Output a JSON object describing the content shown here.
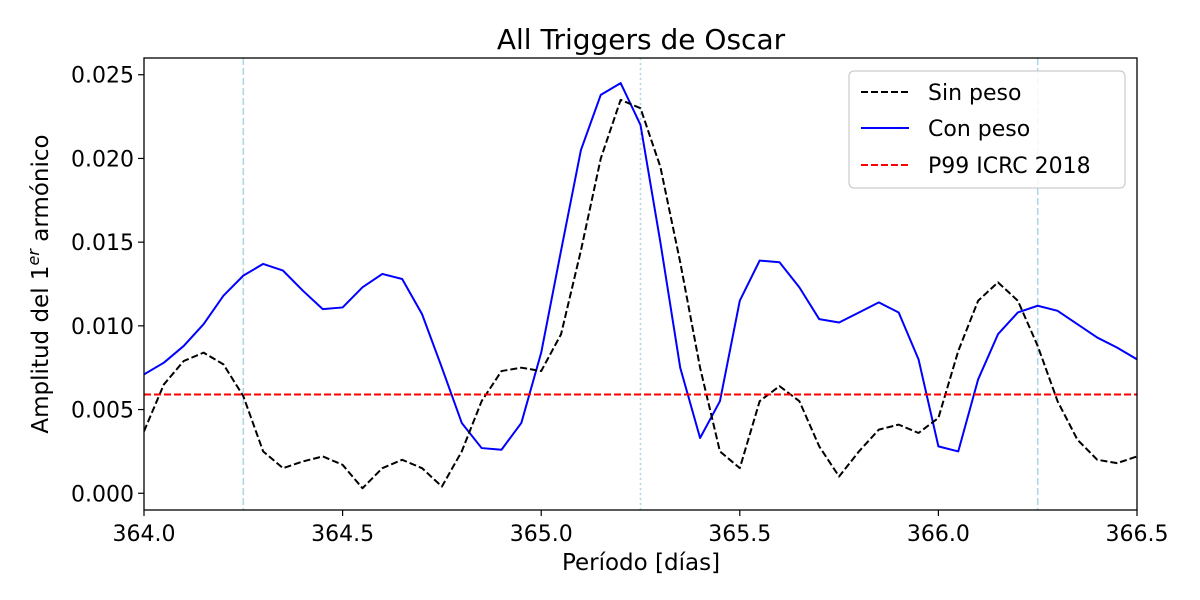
{
  "chart_data": {
    "type": "line",
    "title": "All Triggers de Oscar",
    "xlabel": "Período [días]",
    "ylabel_main": "Amplitud del 1",
    "ylabel_sup": "er",
    "ylabel_tail": " armónico",
    "xlim": [
      364.0,
      366.5
    ],
    "ylim": [
      -0.001,
      0.026
    ],
    "xticks": [
      364.0,
      364.5,
      365.0,
      365.5,
      366.0,
      366.5
    ],
    "xtick_labels": [
      "364.0",
      "364.5",
      "365.0",
      "365.5",
      "366.0",
      "366.5"
    ],
    "yticks": [
      0.0,
      0.005,
      0.01,
      0.015,
      0.02,
      0.025
    ],
    "ytick_labels": [
      "0.000",
      "0.005",
      "0.010",
      "0.015",
      "0.020",
      "0.025"
    ],
    "grid": false,
    "legend_position": "top-right",
    "series": [
      {
        "name": "Sin peso",
        "color": "#000000",
        "style": "dashed",
        "x": [
          364.0,
          364.05,
          364.1,
          364.15,
          364.2,
          364.25,
          364.3,
          364.35,
          364.4,
          364.45,
          364.5,
          364.55,
          364.6,
          364.65,
          364.7,
          364.75,
          364.8,
          364.85,
          364.9,
          364.95,
          365.0,
          365.05,
          365.1,
          365.15,
          365.2,
          365.25,
          365.3,
          365.35,
          365.4,
          365.45,
          365.5,
          365.55,
          365.6,
          365.65,
          365.7,
          365.75,
          365.8,
          365.85,
          365.9,
          365.95,
          366.0,
          366.05,
          366.1,
          366.15,
          366.2,
          366.25,
          366.3,
          366.35,
          366.4,
          366.45,
          366.5
        ],
        "y": [
          0.0037,
          0.0065,
          0.0079,
          0.0084,
          0.0077,
          0.0058,
          0.0025,
          0.0015,
          0.0019,
          0.0022,
          0.0017,
          0.0003,
          0.0015,
          0.002,
          0.0015,
          0.0004,
          0.0025,
          0.0055,
          0.0073,
          0.0075,
          0.0073,
          0.0095,
          0.0145,
          0.02,
          0.0235,
          0.023,
          0.0195,
          0.0138,
          0.0075,
          0.0025,
          0.0015,
          0.0055,
          0.0064,
          0.0055,
          0.0028,
          0.001,
          0.0025,
          0.0038,
          0.0041,
          0.0036,
          0.0045,
          0.0085,
          0.0115,
          0.0126,
          0.0115,
          0.0088,
          0.0055,
          0.0032,
          0.002,
          0.0018,
          0.0022
        ]
      },
      {
        "name": "Con peso",
        "color": "#0000ff",
        "style": "solid",
        "x": [
          364.0,
          364.05,
          364.1,
          364.15,
          364.2,
          364.25,
          364.3,
          364.35,
          364.4,
          364.45,
          364.5,
          364.55,
          364.6,
          364.65,
          364.7,
          364.75,
          364.8,
          364.85,
          364.9,
          364.95,
          365.0,
          365.05,
          365.1,
          365.15,
          365.2,
          365.25,
          365.3,
          365.35,
          365.4,
          365.45,
          365.5,
          365.55,
          365.6,
          365.65,
          365.7,
          365.75,
          365.8,
          365.85,
          365.9,
          365.95,
          366.0,
          366.05,
          366.1,
          366.15,
          366.2,
          366.25,
          366.3,
          366.35,
          366.4,
          366.45,
          366.5
        ],
        "y": [
          0.0071,
          0.0078,
          0.0088,
          0.0101,
          0.0118,
          0.013,
          0.0137,
          0.0133,
          0.0121,
          0.011,
          0.0111,
          0.0123,
          0.0131,
          0.0128,
          0.0107,
          0.0075,
          0.0042,
          0.0027,
          0.0026,
          0.0042,
          0.0084,
          0.0145,
          0.0205,
          0.0238,
          0.0245,
          0.022,
          0.015,
          0.0075,
          0.0033,
          0.0055,
          0.0115,
          0.0139,
          0.0138,
          0.0123,
          0.0104,
          0.0102,
          0.0108,
          0.0114,
          0.0108,
          0.008,
          0.0028,
          0.0025,
          0.0068,
          0.0095,
          0.0108,
          0.0112,
          0.0109,
          0.0101,
          0.0093,
          0.0087,
          0.008
        ]
      },
      {
        "name": "P99 ICRC 2018",
        "color": "#ff0000",
        "style": "dashed",
        "x": [
          364.0,
          366.5
        ],
        "y": [
          0.0059,
          0.0059
        ]
      }
    ],
    "reference_lines": [
      {
        "x": 364.25,
        "color": "#add8e6",
        "style": "dashed"
      },
      {
        "x": 365.25,
        "color": "#add8e6",
        "style": "dotted"
      },
      {
        "x": 366.25,
        "color": "#add8e6",
        "style": "dashed"
      }
    ]
  }
}
